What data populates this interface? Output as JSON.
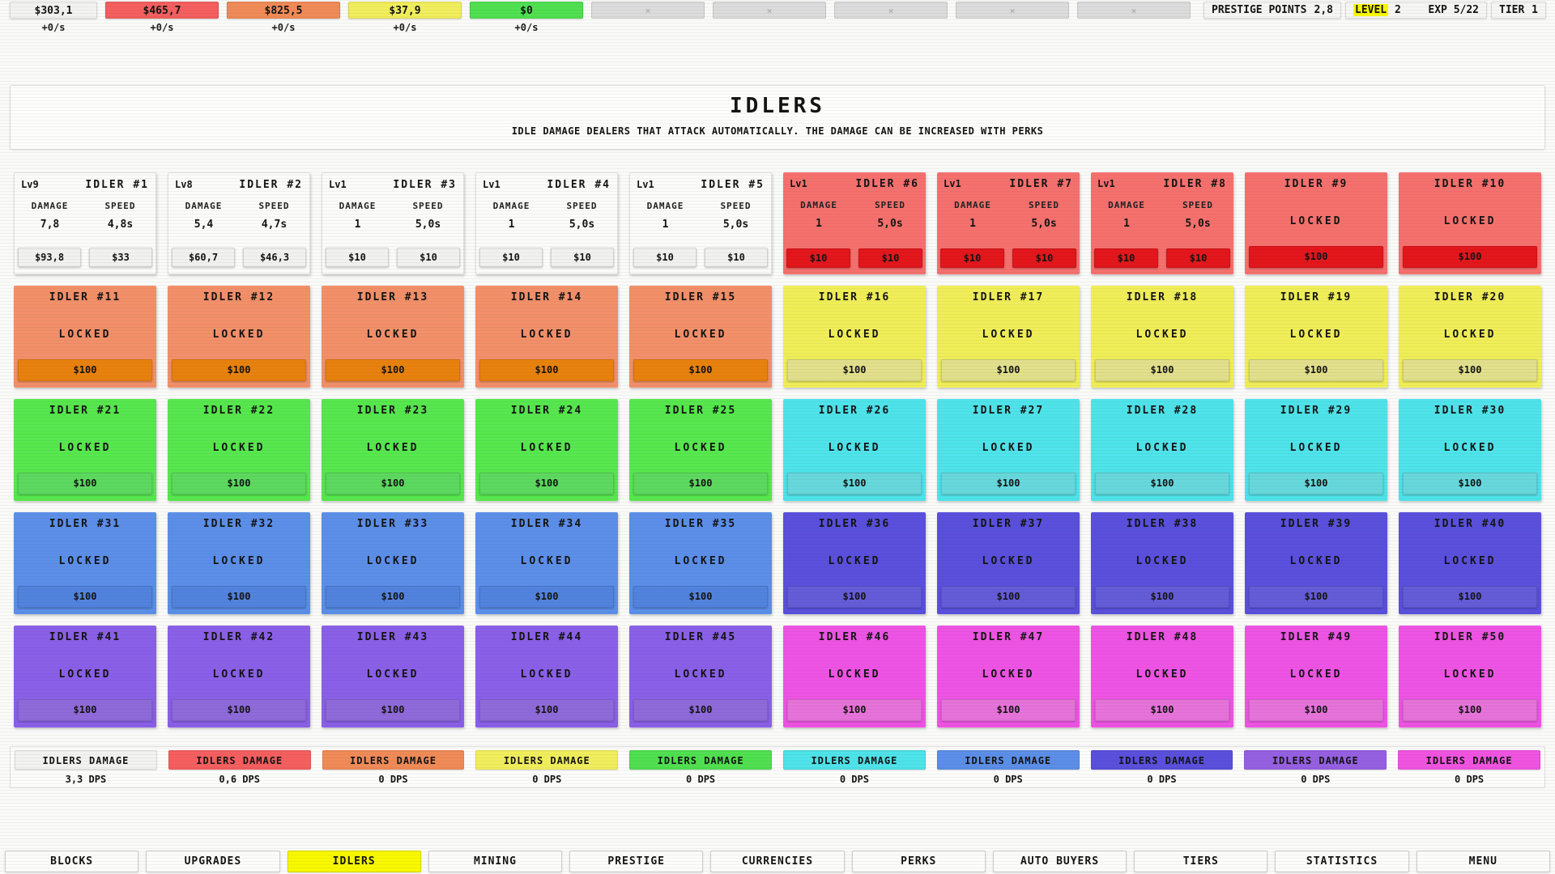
{
  "topbar": {
    "currencies": [
      {
        "value": "$303,1",
        "rate": "+0/s",
        "group": "default"
      },
      {
        "value": "$465,7",
        "rate": "+0/s",
        "group": "red"
      },
      {
        "value": "$825,5",
        "rate": "+0/s",
        "group": "orange"
      },
      {
        "value": "$37,9",
        "rate": "+0/s",
        "group": "yellow"
      },
      {
        "value": "$0",
        "rate": "+0/s",
        "group": "green"
      },
      {
        "value": "×",
        "rate": "",
        "group": "locked"
      },
      {
        "value": "×",
        "rate": "",
        "group": "locked"
      },
      {
        "value": "×",
        "rate": "",
        "group": "locked"
      },
      {
        "value": "×",
        "rate": "",
        "group": "locked"
      },
      {
        "value": "×",
        "rate": "",
        "group": "locked"
      }
    ],
    "prestige_label": "PRESTIGE POINTS",
    "prestige_value": "2,8",
    "level_label": "LEVEL",
    "level_value": "2",
    "exp_label": "EXP",
    "exp_value": "5/22",
    "tier_label": "TIER",
    "tier_value": "1"
  },
  "panel": {
    "title": "IDLERS",
    "subtitle": "IDLE DAMAGE DEALERS THAT ATTACK AUTOMATICALLY. THE DAMAGE CAN BE INCREASED WITH PERKS"
  },
  "labels": {
    "damage": "DAMAGE",
    "speed": "SPEED",
    "locked": "LOCKED"
  },
  "idlers": [
    {
      "num": 1,
      "title": "IDLER #1",
      "group": "default",
      "state": "active",
      "lv": "Lv9",
      "damage": "7,8",
      "speed": "4,8s",
      "damage_cost": "$93,8",
      "speed_cost": "$33"
    },
    {
      "num": 2,
      "title": "IDLER #2",
      "group": "default",
      "state": "active",
      "lv": "Lv8",
      "damage": "5,4",
      "speed": "4,7s",
      "damage_cost": "$60,7",
      "speed_cost": "$46,3"
    },
    {
      "num": 3,
      "title": "IDLER #3",
      "group": "default",
      "state": "active",
      "lv": "Lv1",
      "damage": "1",
      "speed": "5,0s",
      "damage_cost": "$10",
      "speed_cost": "$10"
    },
    {
      "num": 4,
      "title": "IDLER #4",
      "group": "default",
      "state": "active",
      "lv": "Lv1",
      "damage": "1",
      "speed": "5,0s",
      "damage_cost": "$10",
      "speed_cost": "$10"
    },
    {
      "num": 5,
      "title": "IDLER #5",
      "group": "default",
      "state": "active",
      "lv": "Lv1",
      "damage": "1",
      "speed": "5,0s",
      "damage_cost": "$10",
      "speed_cost": "$10"
    },
    {
      "num": 6,
      "title": "IDLER #6",
      "group": "red",
      "state": "active",
      "lv": "Lv1",
      "damage": "1",
      "speed": "5,0s",
      "damage_cost": "$10",
      "speed_cost": "$10"
    },
    {
      "num": 7,
      "title": "IDLER #7",
      "group": "red",
      "state": "active",
      "lv": "Lv1",
      "damage": "1",
      "speed": "5,0s",
      "damage_cost": "$10",
      "speed_cost": "$10"
    },
    {
      "num": 8,
      "title": "IDLER #8",
      "group": "red",
      "state": "active",
      "lv": "Lv1",
      "damage": "1",
      "speed": "5,0s",
      "damage_cost": "$10",
      "speed_cost": "$10"
    },
    {
      "num": 9,
      "title": "IDLER #9",
      "group": "red",
      "state": "locked",
      "cost": "$100"
    },
    {
      "num": 10,
      "title": "IDLER #10",
      "group": "red",
      "state": "locked",
      "cost": "$100"
    },
    {
      "num": 11,
      "title": "IDLER #11",
      "group": "orange",
      "state": "locked",
      "cost": "$100"
    },
    {
      "num": 12,
      "title": "IDLER #12",
      "group": "orange",
      "state": "locked",
      "cost": "$100"
    },
    {
      "num": 13,
      "title": "IDLER #13",
      "group": "orange",
      "state": "locked",
      "cost": "$100"
    },
    {
      "num": 14,
      "title": "IDLER #14",
      "group": "orange",
      "state": "locked",
      "cost": "$100"
    },
    {
      "num": 15,
      "title": "IDLER #15",
      "group": "orange",
      "state": "locked",
      "cost": "$100"
    },
    {
      "num": 16,
      "title": "IDLER #16",
      "group": "yellow",
      "state": "locked",
      "cost": "$100"
    },
    {
      "num": 17,
      "title": "IDLER #17",
      "group": "yellow",
      "state": "locked",
      "cost": "$100"
    },
    {
      "num": 18,
      "title": "IDLER #18",
      "group": "yellow",
      "state": "locked",
      "cost": "$100"
    },
    {
      "num": 19,
      "title": "IDLER #19",
      "group": "yellow",
      "state": "locked",
      "cost": "$100"
    },
    {
      "num": 20,
      "title": "IDLER #20",
      "group": "yellow",
      "state": "locked",
      "cost": "$100"
    },
    {
      "num": 21,
      "title": "IDLER #21",
      "group": "green",
      "state": "locked",
      "cost": "$100"
    },
    {
      "num": 22,
      "title": "IDLER #22",
      "group": "green",
      "state": "locked",
      "cost": "$100"
    },
    {
      "num": 23,
      "title": "IDLER #23",
      "group": "green",
      "state": "locked",
      "cost": "$100"
    },
    {
      "num": 24,
      "title": "IDLER #24",
      "group": "green",
      "state": "locked",
      "cost": "$100"
    },
    {
      "num": 25,
      "title": "IDLER #25",
      "group": "green",
      "state": "locked",
      "cost": "$100"
    },
    {
      "num": 26,
      "title": "IDLER #26",
      "group": "cyan",
      "state": "locked",
      "cost": "$100"
    },
    {
      "num": 27,
      "title": "IDLER #27",
      "group": "cyan",
      "state": "locked",
      "cost": "$100"
    },
    {
      "num": 28,
      "title": "IDLER #28",
      "group": "cyan",
      "state": "locked",
      "cost": "$100"
    },
    {
      "num": 29,
      "title": "IDLER #29",
      "group": "cyan",
      "state": "locked",
      "cost": "$100"
    },
    {
      "num": 30,
      "title": "IDLER #30",
      "group": "cyan",
      "state": "locked",
      "cost": "$100"
    },
    {
      "num": 31,
      "title": "IDLER #31",
      "group": "blue",
      "state": "locked",
      "cost": "$100"
    },
    {
      "num": 32,
      "title": "IDLER #32",
      "group": "blue",
      "state": "locked",
      "cost": "$100"
    },
    {
      "num": 33,
      "title": "IDLER #33",
      "group": "blue",
      "state": "locked",
      "cost": "$100"
    },
    {
      "num": 34,
      "title": "IDLER #34",
      "group": "blue",
      "state": "locked",
      "cost": "$100"
    },
    {
      "num": 35,
      "title": "IDLER #35",
      "group": "blue",
      "state": "locked",
      "cost": "$100"
    },
    {
      "num": 36,
      "title": "IDLER #36",
      "group": "indigo",
      "state": "locked",
      "cost": "$100"
    },
    {
      "num": 37,
      "title": "IDLER #37",
      "group": "indigo",
      "state": "locked",
      "cost": "$100"
    },
    {
      "num": 38,
      "title": "IDLER #38",
      "group": "indigo",
      "state": "locked",
      "cost": "$100"
    },
    {
      "num": 39,
      "title": "IDLER #39",
      "group": "indigo",
      "state": "locked",
      "cost": "$100"
    },
    {
      "num": 40,
      "title": "IDLER #40",
      "group": "indigo",
      "state": "locked",
      "cost": "$100"
    },
    {
      "num": 41,
      "title": "IDLER #41",
      "group": "purple",
      "state": "locked",
      "cost": "$100"
    },
    {
      "num": 42,
      "title": "IDLER #42",
      "group": "purple",
      "state": "locked",
      "cost": "$100"
    },
    {
      "num": 43,
      "title": "IDLER #43",
      "group": "purple",
      "state": "locked",
      "cost": "$100"
    },
    {
      "num": 44,
      "title": "IDLER #44",
      "group": "purple",
      "state": "locked",
      "cost": "$100"
    },
    {
      "num": 45,
      "title": "IDLER #45",
      "group": "purple",
      "state": "locked",
      "cost": "$100"
    },
    {
      "num": 46,
      "title": "IDLER #46",
      "group": "magenta",
      "state": "locked",
      "cost": "$100"
    },
    {
      "num": 47,
      "title": "IDLER #47",
      "group": "magenta",
      "state": "locked",
      "cost": "$100"
    },
    {
      "num": 48,
      "title": "IDLER #48",
      "group": "magenta",
      "state": "locked",
      "cost": "$100"
    },
    {
      "num": 49,
      "title": "IDLER #49",
      "group": "magenta",
      "state": "locked",
      "cost": "$100"
    },
    {
      "num": 50,
      "title": "IDLER #50",
      "group": "magenta",
      "state": "locked",
      "cost": "$100"
    }
  ],
  "damage_summary": {
    "label": "IDLERS DAMAGE",
    "groups": [
      {
        "group": "default",
        "dps": "3,3 DPS"
      },
      {
        "group": "red",
        "dps": "0,6 DPS"
      },
      {
        "group": "orange",
        "dps": "0 DPS"
      },
      {
        "group": "yellow",
        "dps": "0 DPS"
      },
      {
        "group": "green",
        "dps": "0 DPS"
      },
      {
        "group": "cyan",
        "dps": "0 DPS"
      },
      {
        "group": "blue",
        "dps": "0 DPS"
      },
      {
        "group": "indigo",
        "dps": "0 DPS"
      },
      {
        "group": "purple",
        "dps": "0 DPS"
      },
      {
        "group": "magenta",
        "dps": "0 DPS"
      }
    ]
  },
  "nav": {
    "items": [
      {
        "label": "BLOCKS"
      },
      {
        "label": "UPGRADES"
      },
      {
        "label": "IDLERS"
      },
      {
        "label": "MINING"
      },
      {
        "label": "PRESTIGE"
      },
      {
        "label": "CURRENCIES"
      },
      {
        "label": "PERKS"
      },
      {
        "label": "AUTO BUYERS"
      },
      {
        "label": "TIERS"
      },
      {
        "label": "STATISTICS"
      },
      {
        "label": "MENU"
      }
    ],
    "active": "IDLERS"
  },
  "colors": {
    "accent": "#f8f800",
    "groups": {
      "default": {
        "card": "#fbfbfa",
        "card_border": "#e0e0e0",
        "btn": "#f1f1ef",
        "btn_border": "#d2d2d0",
        "chip": "#f2f2f0",
        "chip_border": "#d8d8d8"
      },
      "red": {
        "card": "#f5716e",
        "btn": "#e3171c",
        "chip": "#f55f5f"
      },
      "orange": {
        "card": "#f2906a",
        "btn": "#e8820e",
        "chip": "#f08b58"
      },
      "yellow": {
        "card": "#f0ee58",
        "btn": "#e2e08c",
        "chip": "#f1ee5d"
      },
      "green": {
        "card": "#57e74e",
        "btn": "#5dd95f",
        "chip": "#50e050"
      },
      "cyan": {
        "card": "#4fe3ea",
        "btn": "#67d8dc",
        "chip": "#4fe3ea"
      },
      "blue": {
        "card": "#5c8fe8",
        "btn": "#5283dd",
        "chip": "#5c8fe8"
      },
      "indigo": {
        "card": "#5a50dc",
        "btn": "#655cd8",
        "chip": "#5a50dc"
      },
      "purple": {
        "card": "#8a60e8",
        "btn": "#8f6ada",
        "chip": "#9660e2"
      },
      "magenta": {
        "card": "#ee54e4",
        "btn": "#e673da",
        "chip": "#f054e0"
      },
      "locked": {
        "chip": "#dcdcdc",
        "chip_text": "#b2b2b2"
      }
    }
  }
}
